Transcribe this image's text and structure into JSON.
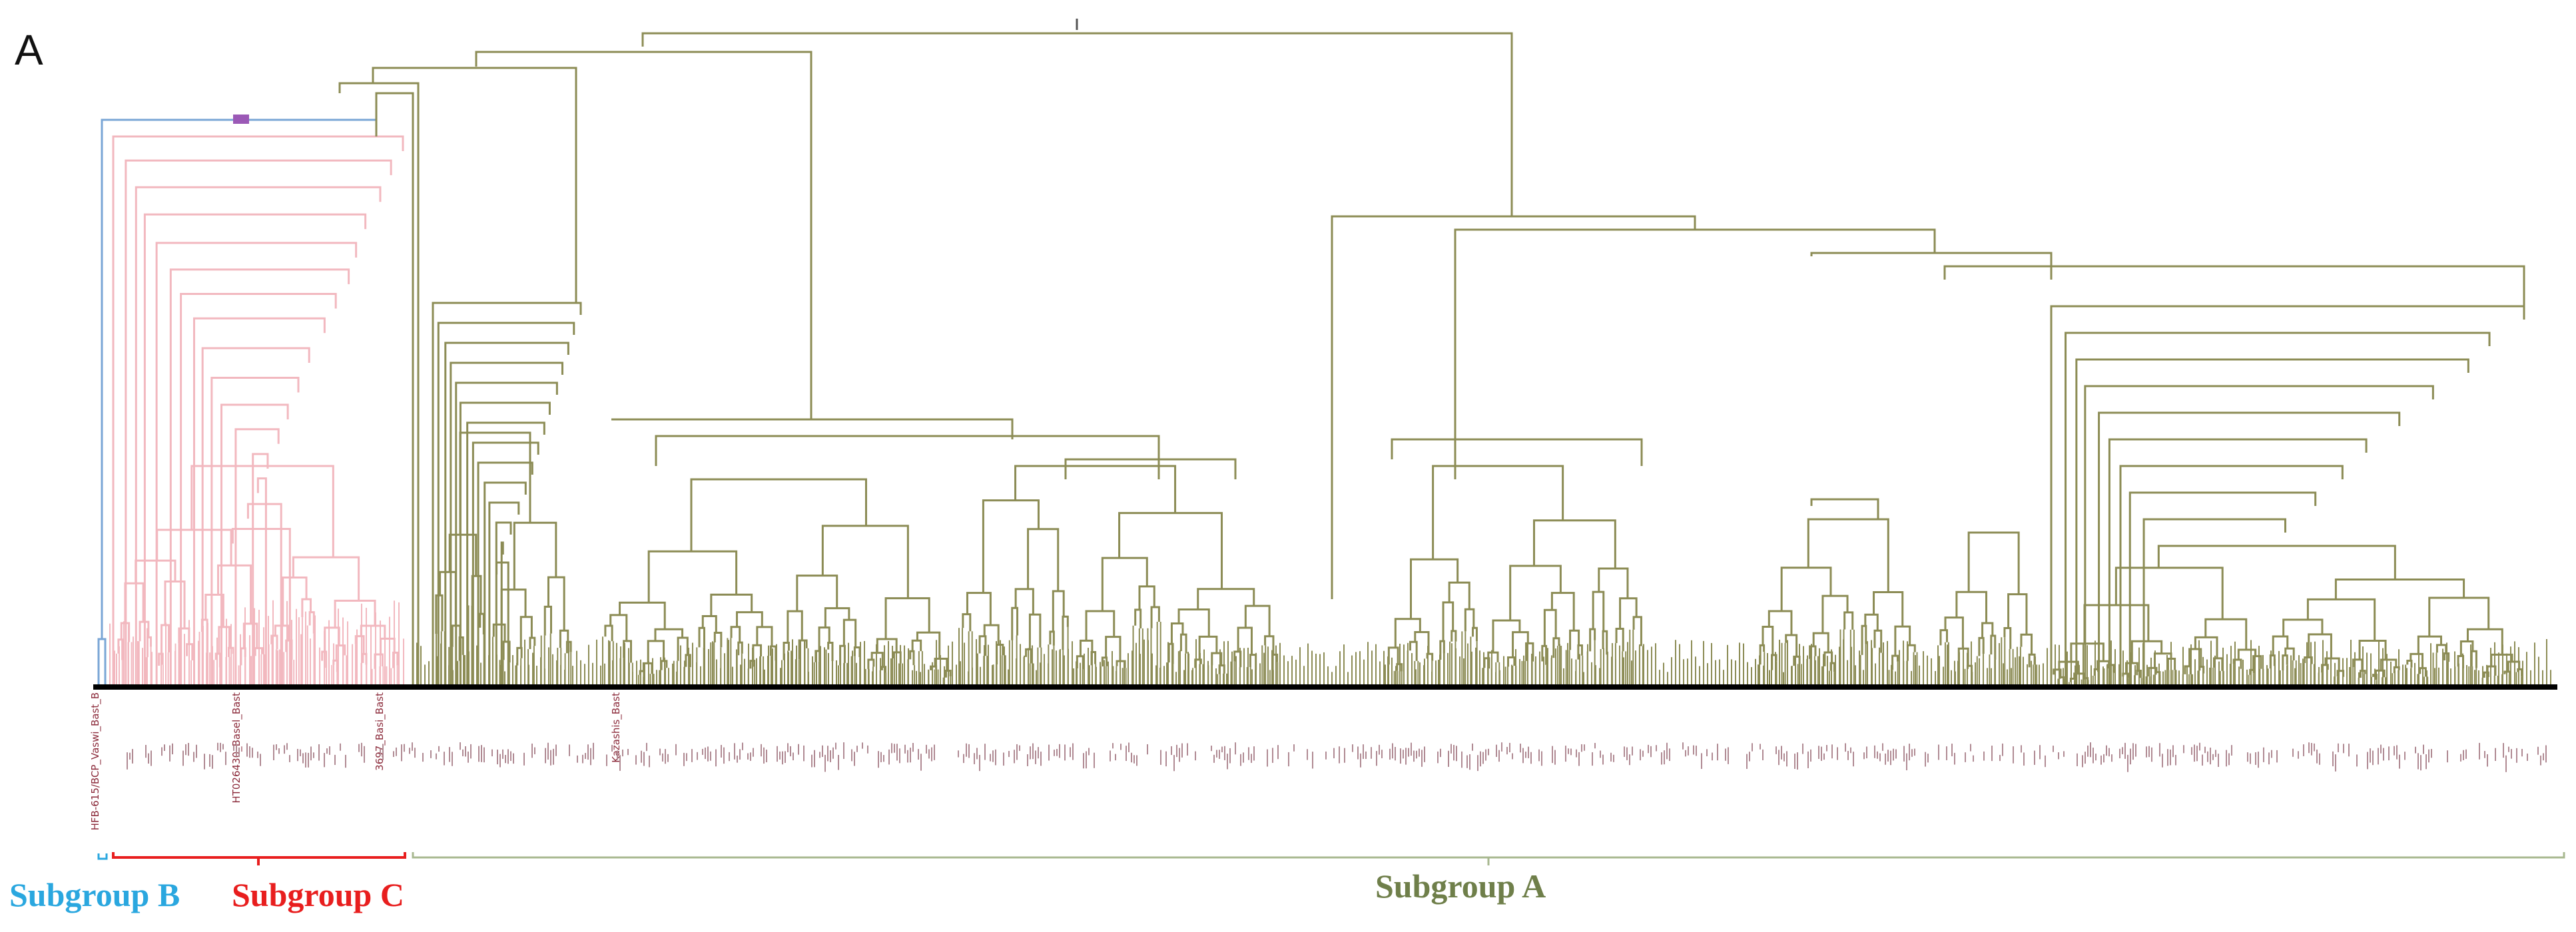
{
  "figure": {
    "panel_label": "A",
    "subgroups": {
      "b": {
        "label": "Subgroup B",
        "color": "#2aa7df",
        "branch_color": "#7aa6d6"
      },
      "c": {
        "label": "Subgroup C",
        "color": "#e81e1e",
        "branch_color": "#f2b8bf"
      },
      "a": {
        "label": "Subgroup A",
        "color": "#6f7f4a",
        "branch_color": "#8c8c55"
      }
    },
    "leaf_labels": {
      "b_leaf": "HFB-615/BCP_Vaswi_Bast_B",
      "c_leaf_1": "HT026430_Basel_Bast",
      "c_leaf_2": "3697_Basi_Bast",
      "a_leaf_1": "Kazashis_Bast"
    },
    "axis_color": "#000000"
  }
}
